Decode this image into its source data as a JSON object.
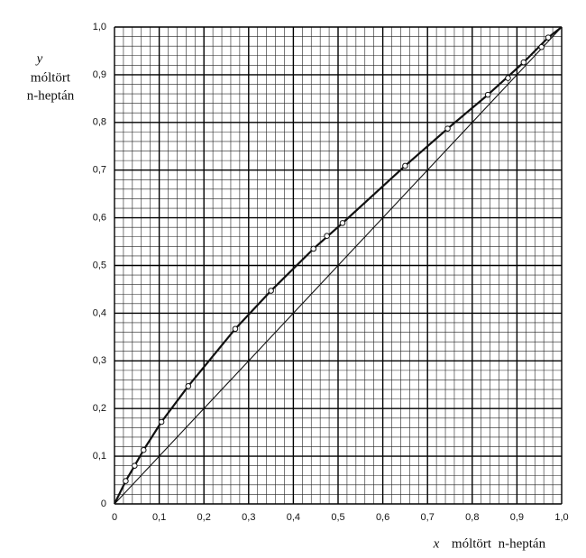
{
  "chart_data": {
    "type": "line",
    "x_label": {
      "symbol": "x",
      "text": "móltört  n-heptán"
    },
    "y_label": {
      "symbol": "y",
      "lines": [
        "móltört",
        "n-heptán"
      ]
    },
    "xlim": [
      0,
      1
    ],
    "ylim": [
      0,
      1
    ],
    "xticks": [
      0,
      {
        "value": 0.1,
        "label": "0,1"
      },
      {
        "value": 0.2,
        "label": "0,2"
      },
      {
        "value": 0.3,
        "label": "0,3"
      },
      {
        "value": 0.4,
        "label": "0,4"
      },
      {
        "value": 0.5,
        "label": "0,5"
      },
      {
        "value": 0.6,
        "label": "0,6"
      },
      {
        "value": 0.7,
        "label": "0,7"
      },
      {
        "value": 0.8,
        "label": "0,8"
      },
      {
        "value": 0.9,
        "label": "0,9"
      },
      {
        "value": 1,
        "label": "1,0"
      }
    ],
    "yticks": [
      0,
      {
        "value": 0.1,
        "label": "0,1"
      },
      {
        "value": 0.2,
        "label": "0,2"
      },
      {
        "value": 0.3,
        "label": "0,3"
      },
      {
        "value": 0.4,
        "label": "0,4"
      },
      {
        "value": 0.5,
        "label": "0,5"
      },
      {
        "value": 0.6,
        "label": "0,6"
      },
      {
        "value": 0.7,
        "label": "0,7"
      },
      {
        "value": 0.8,
        "label": "0,8"
      },
      {
        "value": 0.9,
        "label": "0,9"
      },
      {
        "value": 1,
        "label": "1,0"
      }
    ],
    "grid": true,
    "minor_grid": 0.02,
    "series": [
      {
        "kind": "markers",
        "color": "#111",
        "x": [
          0.025,
          0.045,
          0.065,
          0.105,
          0.165,
          0.27,
          0.35,
          0.445,
          0.475,
          0.51,
          0.65,
          0.745,
          0.835,
          0.88,
          0.915,
          0.955,
          0.97
        ],
        "values": [
          0.048,
          0.08,
          0.113,
          0.172,
          0.247,
          0.367,
          0.447,
          0.535,
          0.562,
          0.589,
          0.709,
          0.787,
          0.858,
          0.893,
          0.926,
          0.958,
          0.978
        ]
      },
      {
        "kind": "curve",
        "color": "#111",
        "x": [
          0,
          0.025,
          0.045,
          0.065,
          0.105,
          0.165,
          0.27,
          0.35,
          0.445,
          0.51,
          0.65,
          0.745,
          0.835,
          0.915,
          0.97,
          1
        ],
        "values": [
          0,
          0.048,
          0.08,
          0.113,
          0.172,
          0.247,
          0.367,
          0.447,
          0.535,
          0.589,
          0.709,
          0.787,
          0.858,
          0.926,
          0.978,
          1
        ]
      },
      {
        "kind": "diagonal",
        "color": "#111",
        "x": [
          0,
          1
        ],
        "values": [
          0,
          1
        ]
      }
    ]
  }
}
